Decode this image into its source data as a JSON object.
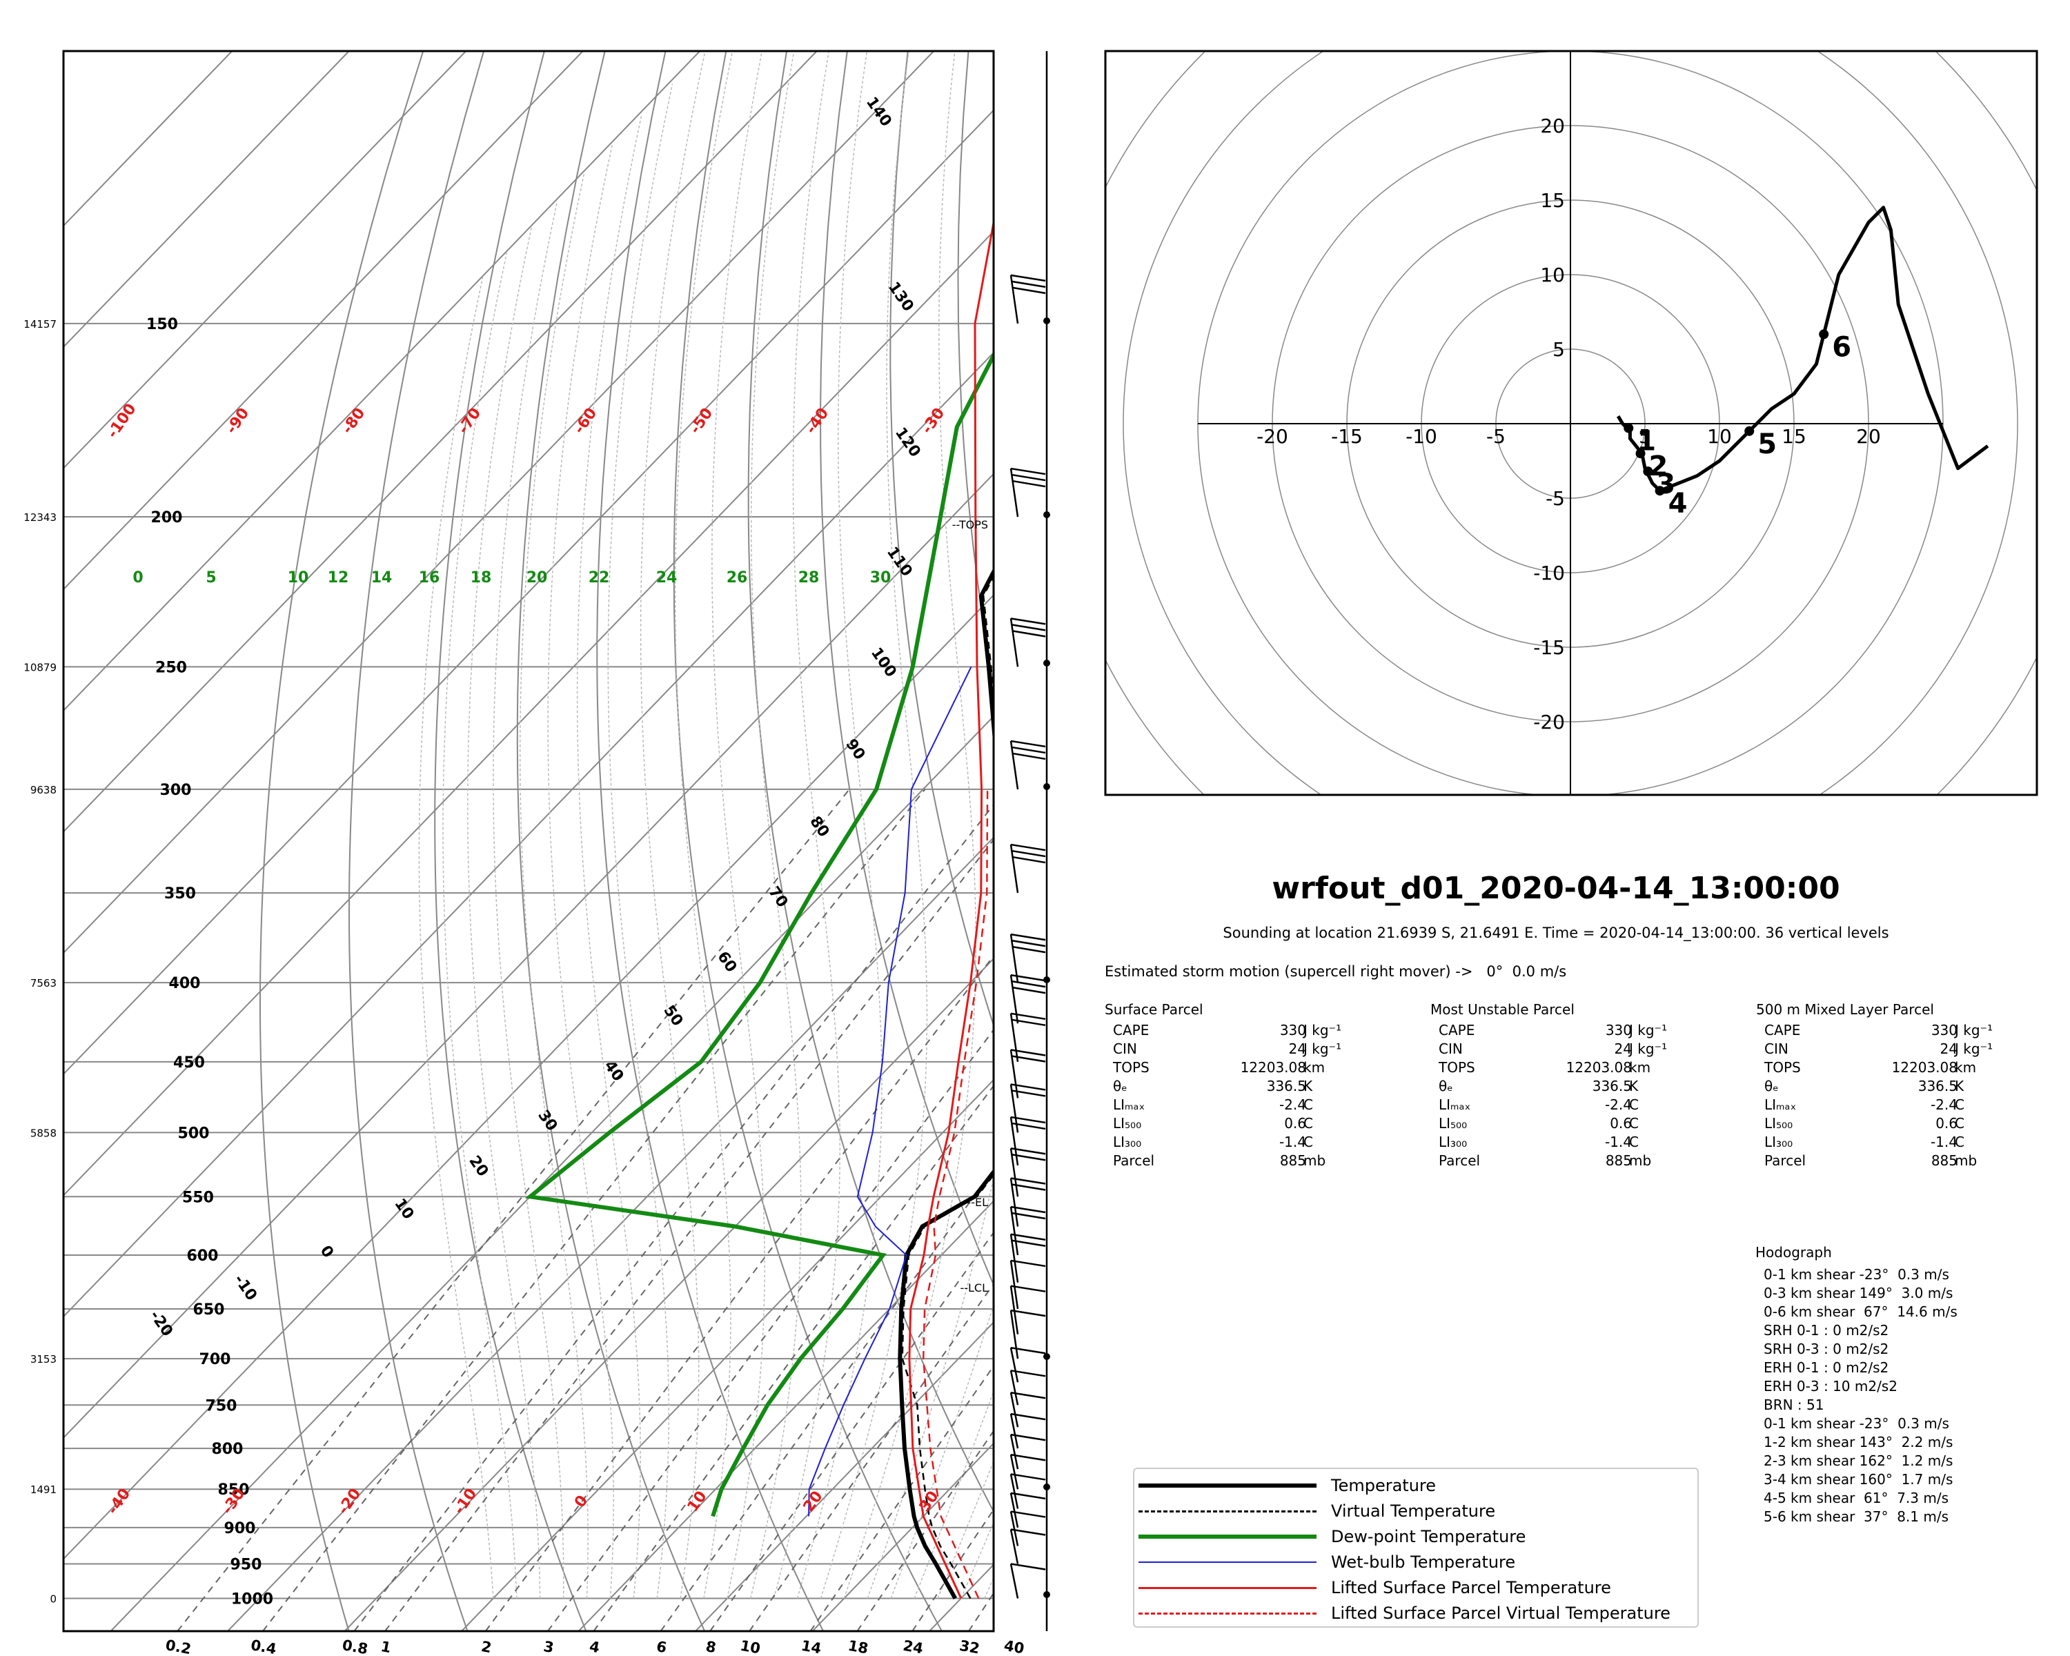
{
  "title": "wrfout_d01_2020-04-14_13:00:00",
  "subtitle": "Sounding at location 21.6939 S, 21.6491 E. Time = 2020-04-14_13:00:00. 36 vertical levels",
  "storm_motion": "Estimated storm motion (supercell right mover) ->   0°  0.0 m/s",
  "parcels": [
    {
      "title": "Surface Parcel",
      "rows": [
        {
          "label": "CAPE",
          "value": "330",
          "unit": "J kg⁻¹"
        },
        {
          "label": "CIN",
          "value": "24",
          "unit": "J kg⁻¹"
        },
        {
          "label": "TOPS",
          "value": "12203.08",
          "unit": "km"
        },
        {
          "label": "θₑ",
          "value": "336.5",
          "unit": "K"
        },
        {
          "label": "LIₘₐₓ",
          "value": "-2.4",
          "unit": "C"
        },
        {
          "label": "LI₅₀₀",
          "value": "0.6",
          "unit": "C"
        },
        {
          "label": "LI₃₀₀",
          "value": "-1.4",
          "unit": "C"
        },
        {
          "label": "Parcel",
          "value": "885",
          "unit": "mb"
        }
      ]
    },
    {
      "title": "Most Unstable Parcel",
      "rows": [
        {
          "label": "CAPE",
          "value": "330",
          "unit": "J kg⁻¹"
        },
        {
          "label": "CIN",
          "value": "24",
          "unit": "J kg⁻¹"
        },
        {
          "label": "TOPS",
          "value": "12203.08",
          "unit": "km"
        },
        {
          "label": "θₑ",
          "value": "336.5",
          "unit": "K"
        },
        {
          "label": "LIₘₐₓ",
          "value": "-2.4",
          "unit": "C"
        },
        {
          "label": "LI₅₀₀",
          "value": "0.6",
          "unit": "C"
        },
        {
          "label": "LI₃₀₀",
          "value": "-1.4",
          "unit": "C"
        },
        {
          "label": "Parcel",
          "value": "885",
          "unit": "mb"
        }
      ]
    },
    {
      "title": "500 m Mixed Layer Parcel",
      "rows": [
        {
          "label": "CAPE",
          "value": "330",
          "unit": "J kg⁻¹"
        },
        {
          "label": "CIN",
          "value": "24",
          "unit": "J kg⁻¹"
        },
        {
          "label": "TOPS",
          "value": "12203.08",
          "unit": "km"
        },
        {
          "label": "θₑ",
          "value": "336.5",
          "unit": "K"
        },
        {
          "label": "LIₘₐₓ",
          "value": "-2.4",
          "unit": "C"
        },
        {
          "label": "LI₅₀₀",
          "value": "0.6",
          "unit": "C"
        },
        {
          "label": "LI₃₀₀",
          "value": "-1.4",
          "unit": "C"
        },
        {
          "label": "Parcel",
          "value": "885",
          "unit": "mb"
        }
      ]
    }
  ],
  "hodograph_text": {
    "title": "Hodograph",
    "lines": [
      "0-1 km shear -23°  0.3 m/s",
      "0-3 km shear 149°  3.0 m/s",
      "0-6 km shear  67°  14.6 m/s",
      "SRH 0-1 : 0 m2/s2",
      "SRH 0-3 : 0 m2/s2",
      "ERH 0-1 : 0 m2/s2",
      "ERH 0-3 : 10 m2/s2",
      "BRN : 51",
      "0-1 km shear -23°  0.3 m/s",
      "1-2 km shear 143°  2.2 m/s",
      "2-3 km shear 162°  1.2 m/s",
      "3-4 km shear 160°  1.7 m/s",
      "4-5 km shear  61°  7.3 m/s",
      "5-6 km shear  37°  8.1 m/s"
    ]
  },
  "legend": [
    {
      "label": "Temperature",
      "color": "#000000",
      "style": "solid-thick"
    },
    {
      "label": "Virtual Temperature",
      "color": "#000000",
      "style": "dashed"
    },
    {
      "label": "Dew-point Temperature",
      "color": "#138a13",
      "style": "solid-thick"
    },
    {
      "label": "Wet-bulb Temperature",
      "color": "#1f1fd6",
      "style": "solid-thin"
    },
    {
      "label": "Lifted Surface Parcel Temperature",
      "color": "#e41a1a",
      "style": "solid"
    },
    {
      "label": "Lifted Surface Parcel Virtual Temperature",
      "color": "#e41a1a",
      "style": "dashed"
    }
  ],
  "chart_data": [
    {
      "type": "line",
      "chart": "skew-T log-p",
      "pressure_ticks_mb": [
        150,
        200,
        250,
        300,
        350,
        400,
        450,
        500,
        550,
        600,
        650,
        700,
        750,
        800,
        850,
        900,
        950,
        1000
      ],
      "height_ticks": [
        {
          "p": 150,
          "label": "14157"
        },
        {
          "p": 200,
          "label": "12343"
        },
        {
          "p": 250,
          "label": "10879"
        },
        {
          "p": 300,
          "label": "9638"
        },
        {
          "p": 400,
          "label": "7563"
        },
        {
          "p": 500,
          "label": "5858"
        },
        {
          "p": 700,
          "label": "3153"
        },
        {
          "p": 850,
          "label": "1491"
        },
        {
          "p": 1000,
          "label": "0"
        }
      ],
      "mixing_ratio_labels": [
        "0.2",
        "0.4",
        "0.8",
        "1",
        "2",
        "3",
        "4",
        "6",
        "8",
        "10",
        "14",
        "18",
        "24",
        "32",
        "40"
      ],
      "mixing_ratio_values": [
        0.2,
        0.4,
        0.8,
        1,
        2,
        3,
        4,
        6,
        8,
        10,
        14,
        18,
        24,
        32,
        40
      ],
      "isotherm_labels": [
        {
          "t": -100,
          "label": "-100"
        },
        {
          "t": -90,
          "label": "-90"
        },
        {
          "t": -80,
          "label": "-80"
        },
        {
          "t": -70,
          "label": "-70"
        },
        {
          "t": -60,
          "label": "-60"
        },
        {
          "t": -50,
          "label": "-50"
        },
        {
          "t": -40,
          "label": "-40"
        },
        {
          "t": -30,
          "label": "-30"
        }
      ],
      "isotherm_labels_bottom": [
        {
          "t": -40,
          "label": "-40"
        },
        {
          "t": -30,
          "label": "-30"
        },
        {
          "t": -20,
          "label": "-20"
        },
        {
          "t": -10,
          "label": "-10"
        },
        {
          "t": 0,
          "label": "0"
        },
        {
          "t": 10,
          "label": "10"
        },
        {
          "t": 20,
          "label": "20"
        },
        {
          "t": 30,
          "label": "30"
        }
      ],
      "wetbulb_labels": [
        "0",
        "5",
        "10",
        "12",
        "14",
        "16",
        "18",
        "20",
        "22",
        "24",
        "26",
        "28",
        "30"
      ],
      "dry_adiabat_labels": [
        "140",
        "130",
        "120",
        "110",
        "100",
        "90",
        "80",
        "70",
        "60",
        "50",
        "40",
        "30",
        "20",
        "10",
        "0",
        "-10",
        "-20"
      ],
      "level_labels": [
        "TOPS",
        "EL",
        "LCL"
      ],
      "series": [
        {
          "name": "Temperature",
          "points": [
            [
              1000,
              29.5
            ],
            [
              950,
              25.0
            ],
            [
              925,
              22.6
            ],
            [
              900,
              20.4
            ],
            [
              885,
              19.2
            ],
            [
              850,
              16.6
            ],
            [
              800,
              12.8
            ],
            [
              750,
              9.0
            ],
            [
              700,
              5.0
            ],
            [
              650,
              1.0
            ],
            [
              600,
              -3.0
            ],
            [
              575,
              -4.0
            ],
            [
              550,
              -2.0
            ],
            [
              525,
              -2.5
            ],
            [
              500,
              -4.5
            ],
            [
              450,
              -10.0
            ],
            [
              400,
              -16.0
            ],
            [
              350,
              -24.0
            ],
            [
              300,
              -33.5
            ],
            [
              250,
              -44.5
            ],
            [
              225,
              -51.0
            ],
            [
              200,
              -54.0
            ],
            [
              175,
              -58.0
            ],
            [
              150,
              -62.0
            ],
            [
              130,
              -66.0
            ],
            [
              110,
              -69.0
            ],
            [
              100,
              -72.0
            ]
          ]
        },
        {
          "name": "Dew-point Temperature",
          "points": [
            [
              885,
              2.0
            ],
            [
              850,
              0.5
            ],
            [
              800,
              -1.0
            ],
            [
              750,
              -2.5
            ],
            [
              700,
              -3.5
            ],
            [
              650,
              -4.0
            ],
            [
              600,
              -5.0
            ],
            [
              575,
              -20.0
            ],
            [
              550,
              -40.0
            ],
            [
              500,
              -38.5
            ],
            [
              450,
              -36.5
            ],
            [
              400,
              -38.0
            ],
            [
              350,
              -41.0
            ],
            [
              300,
              -44.0
            ],
            [
              250,
              -51.0
            ],
            [
              200,
              -61.0
            ],
            [
              175,
              -67.0
            ],
            [
              150,
              -71.0
            ],
            [
              130,
              -77.0
            ],
            [
              110,
              -80.0
            ],
            [
              100,
              -82.0
            ]
          ]
        },
        {
          "name": "Wet-bulb Temperature",
          "points": [
            [
              885,
              10.2
            ],
            [
              850,
              8.0
            ],
            [
              800,
              6.0
            ],
            [
              750,
              4.0
            ],
            [
              700,
              2.0
            ],
            [
              650,
              0.0
            ],
            [
              600,
              -3.0
            ],
            [
              575,
              -8.0
            ],
            [
              550,
              -12.0
            ],
            [
              500,
              -16.0
            ],
            [
              450,
              -21.0
            ],
            [
              400,
              -27.0
            ],
            [
              350,
              -33.0
            ],
            [
              300,
              -41.0
            ],
            [
              250,
              -46.0
            ]
          ]
        },
        {
          "name": "Lifted Surface Parcel Temperature",
          "points": [
            [
              1000,
              30.0
            ],
            [
              885,
              20.0
            ],
            [
              800,
              13.5
            ],
            [
              700,
              5.8
            ],
            [
              650,
              1.8
            ],
            [
              600,
              -1.5
            ],
            [
              575,
              -3.5
            ],
            [
              550,
              -5.5
            ],
            [
              500,
              -9.5
            ],
            [
              450,
              -14.5
            ],
            [
              400,
              -20.0
            ],
            [
              350,
              -26.5
            ],
            [
              300,
              -35.0
            ],
            [
              250,
              -45.5
            ],
            [
              200,
              -58.0
            ],
            [
              150,
              -74.0
            ],
            [
              120,
              -84.0
            ],
            [
              100,
              -90.0
            ]
          ]
        },
        {
          "name": "Lifted Surface Parcel Virtual Temperature",
          "points": [
            [
              1000,
              31.5
            ],
            [
              885,
              21.5
            ],
            [
              800,
              15.0
            ],
            [
              700,
              7.0
            ],
            [
              650,
              3.0
            ],
            [
              600,
              -0.5
            ],
            [
              575,
              -3.0
            ],
            [
              550,
              -5.0
            ],
            [
              500,
              -9.0
            ],
            [
              450,
              -14.0
            ],
            [
              400,
              -19.5
            ],
            [
              350,
              -26.0
            ],
            [
              300,
              -34.5
            ]
          ]
        }
      ],
      "wind_barb_pressures_mb": [
        1000,
        950,
        925,
        900,
        875,
        850,
        825,
        800,
        775,
        750,
        725,
        700,
        675,
        650,
        625,
        600,
        575,
        550,
        525,
        500,
        475,
        450,
        425,
        400,
        350,
        300,
        250,
        200,
        150
      ]
    },
    {
      "type": "line",
      "chart": "hodograph",
      "ring_ticks_x": [
        "-20",
        "-15",
        "-10",
        "-5",
        "5",
        "10",
        "15",
        "20"
      ],
      "ring_ticks_y": [
        "20",
        "15",
        "10",
        "5",
        "-5",
        "-10",
        "-15",
        "-20"
      ],
      "xlim": [
        -27,
        28
      ],
      "ylim": [
        -25,
        25
      ],
      "series": [
        {
          "name": "Hodograph",
          "points": [
            [
              3.2,
              0.5
            ],
            [
              3.5,
              0.0
            ],
            [
              4.0,
              -0.5
            ],
            [
              4.0,
              -1.0
            ],
            [
              4.8,
              -2.0
            ],
            [
              5.0,
              -3.0
            ],
            [
              5.5,
              -4.0
            ],
            [
              6.0,
              -4.5
            ],
            [
              8.5,
              -3.5
            ],
            [
              10.0,
              -2.5
            ],
            [
              12.0,
              -0.5
            ],
            [
              13.5,
              1.0
            ],
            [
              15.0,
              2.0
            ],
            [
              16.5,
              4.0
            ],
            [
              17.0,
              6.0
            ],
            [
              17.5,
              8.0
            ],
            [
              18.0,
              10.0
            ],
            [
              20.0,
              13.5
            ],
            [
              21.0,
              14.5
            ],
            [
              21.5,
              13.0
            ],
            [
              22.0,
              8.0
            ],
            [
              24.0,
              2.0
            ],
            [
              26.0,
              -3.0
            ],
            [
              28.0,
              -1.5
            ]
          ]
        }
      ],
      "height_markers": [
        {
          "label": "1",
          "point": [
            3.9,
            -0.3
          ]
        },
        {
          "label": "2",
          "point": [
            4.7,
            -2.0
          ]
        },
        {
          "label": "3",
          "point": [
            5.2,
            -3.2
          ]
        },
        {
          "label": "4",
          "point": [
            6.0,
            -4.5
          ]
        },
        {
          "label": "5",
          "point": [
            12.0,
            -0.5
          ]
        },
        {
          "label": "6",
          "point": [
            17.0,
            6.0
          ]
        }
      ]
    }
  ]
}
